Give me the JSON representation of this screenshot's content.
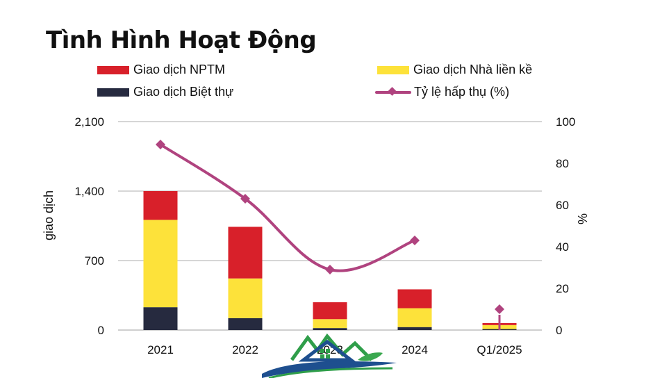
{
  "chart_data": {
    "type": "bar",
    "title": "Tình Hình Hoạt Động",
    "categories": [
      "2021",
      "2022",
      "2023",
      "2024",
      "Q1/2025"
    ],
    "series": [
      {
        "name": "Giao dịch Biệt thự",
        "kind": "stacked-bar",
        "axis": "left",
        "color": "#262a3f",
        "values": [
          230,
          120,
          20,
          30,
          10
        ]
      },
      {
        "name": "Giao dịch Nhà liền kề",
        "kind": "stacked-bar",
        "axis": "left",
        "color": "#fde23a",
        "values": [
          880,
          400,
          90,
          190,
          40
        ]
      },
      {
        "name": "Giao dịch NPTM",
        "kind": "stacked-bar",
        "axis": "left",
        "color": "#d8202a",
        "values": [
          290,
          520,
          170,
          190,
          20
        ]
      },
      {
        "name": "Tỷ lệ hấp thụ (%)",
        "kind": "line",
        "axis": "right",
        "color": "#b0437f",
        "values": [
          89,
          63,
          29,
          43,
          10
        ]
      }
    ],
    "ylabel": "giao dịch",
    "y2label": "%",
    "ylim": [
      0,
      2100
    ],
    "y2lim": [
      0,
      100
    ],
    "yticks": [
      0,
      700,
      1400,
      2100
    ],
    "yticks_labels": [
      "0",
      "700",
      "1,400",
      "2,100"
    ],
    "y2ticks": [
      0,
      20,
      40,
      60,
      80,
      100
    ],
    "grid": true,
    "legend_placement": "top",
    "legend_order": [
      "Giao dịch NPTM",
      "Giao dịch Nhà liền kề",
      "Giao dịch Biệt thự",
      "Tỷ lệ hấp thụ (%)"
    ]
  },
  "colors": {
    "grid": "#c8c8c8",
    "axis": "#bfbfbf"
  },
  "logo": {
    "icon": "house-logo-icon"
  }
}
